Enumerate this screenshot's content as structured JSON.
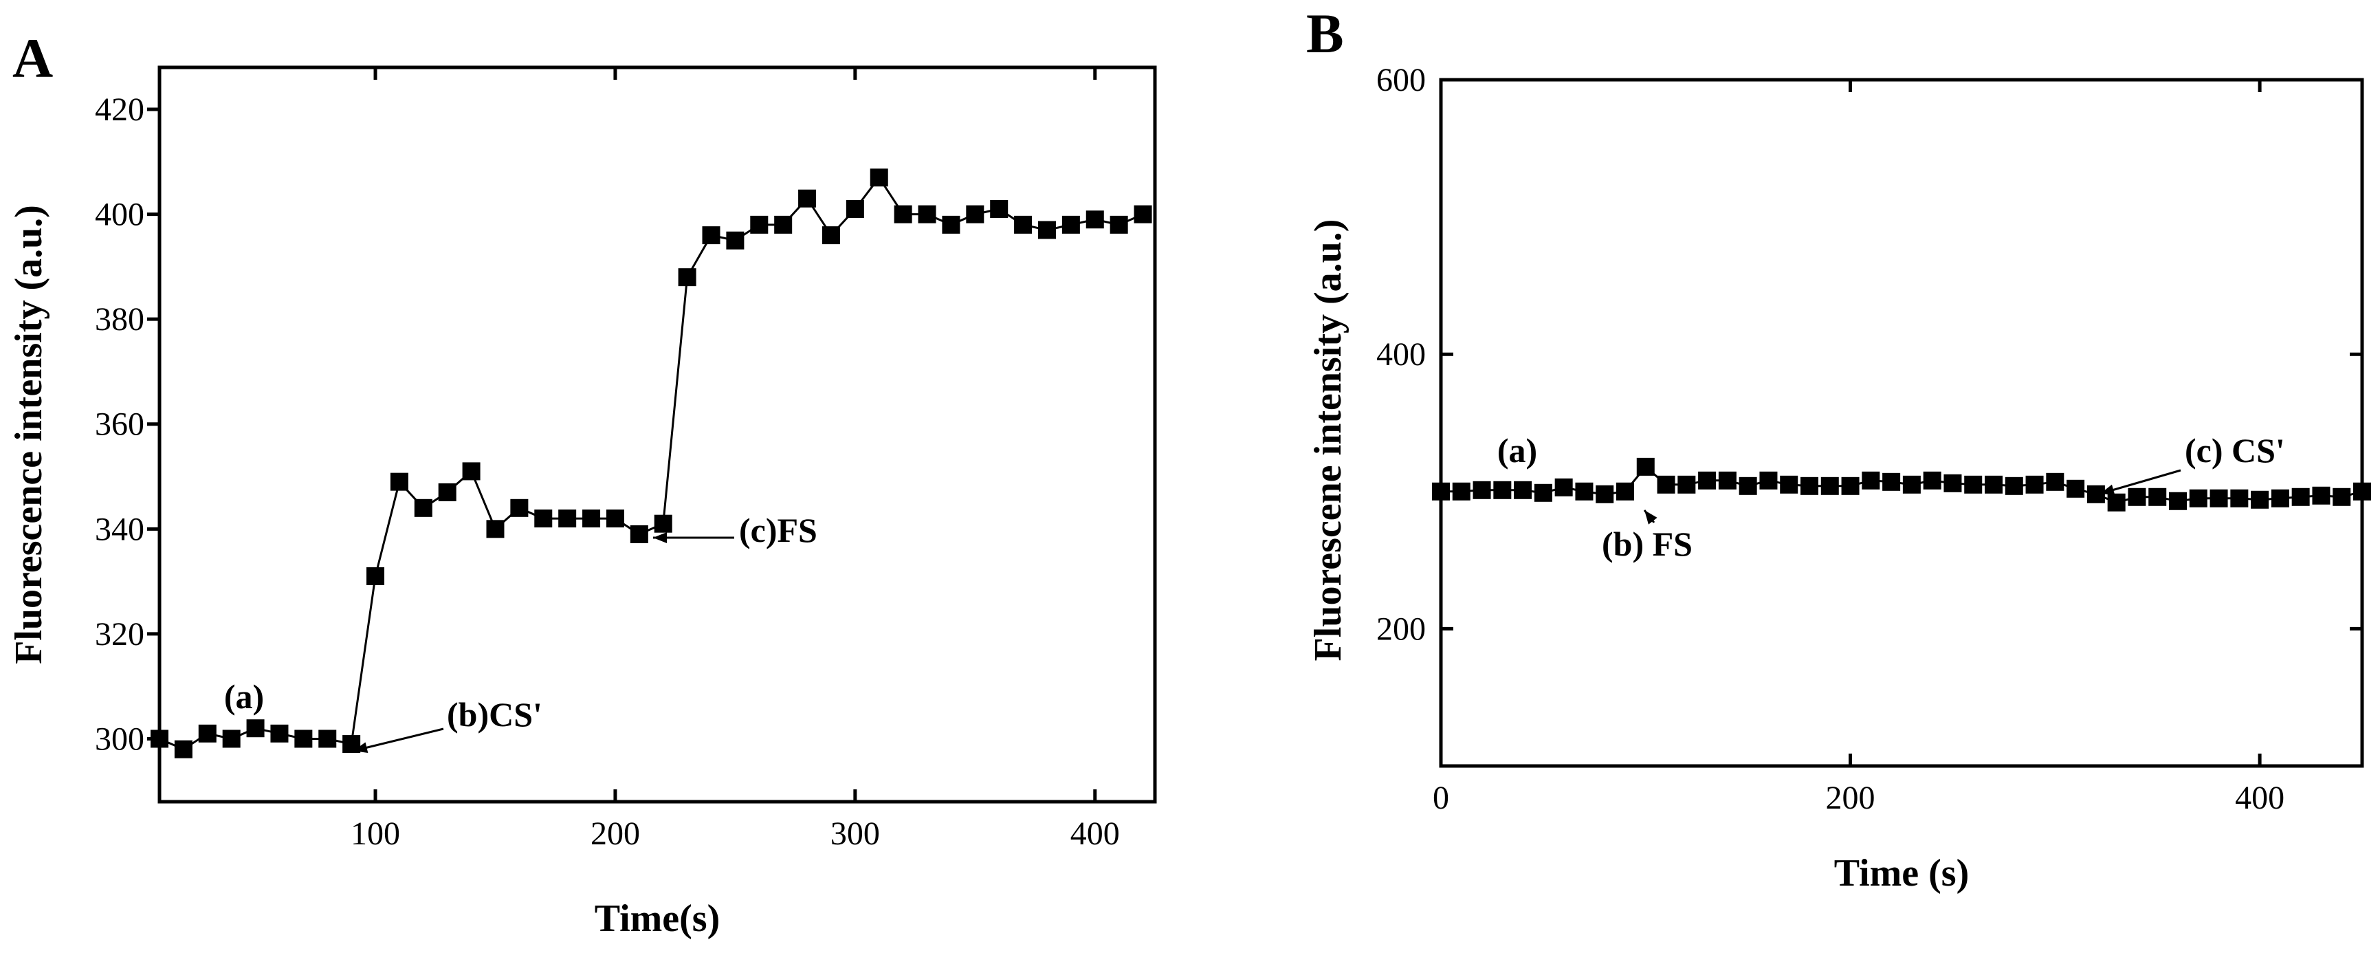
{
  "chart_data": [
    {
      "panel": "A",
      "type": "line",
      "markers": "square",
      "xlabel": "Time(s)",
      "ylabel": "Fluorescence intensity (a.u.)",
      "xlim": [
        10,
        425
      ],
      "ylim": [
        288,
        428
      ],
      "xticks": [
        100,
        200,
        300,
        400
      ],
      "yticks": [
        300,
        320,
        340,
        360,
        380,
        400,
        420
      ],
      "grid": false,
      "legend": "none",
      "color": "#000000",
      "x": [
        10,
        20,
        30,
        40,
        50,
        60,
        70,
        80,
        90,
        100,
        110,
        120,
        130,
        140,
        150,
        160,
        170,
        180,
        190,
        200,
        210,
        220,
        230,
        240,
        250,
        260,
        270,
        280,
        290,
        300,
        310,
        320,
        330,
        340,
        350,
        360,
        370,
        380,
        390,
        400,
        410,
        420
      ],
      "y": [
        300,
        298,
        301,
        300,
        302,
        301,
        300,
        300,
        299,
        331,
        349,
        344,
        347,
        351,
        340,
        344,
        342,
        342,
        342,
        342,
        339,
        341,
        388,
        396,
        395,
        398,
        398,
        403,
        396,
        401,
        407,
        400,
        400,
        398,
        400,
        401,
        398,
        397,
        398,
        399,
        398,
        400
      ],
      "annotations": [
        {
          "text": "(a)",
          "x": 50,
          "y": 300,
          "arrow": false
        },
        {
          "text": "(b)CS'",
          "x": 90,
          "y": 299,
          "arrow": true
        },
        {
          "text": "(c)FS",
          "x": 220,
          "y": 341,
          "arrow": true
        }
      ]
    },
    {
      "panel": "B",
      "type": "line",
      "markers": "square",
      "xlabel": "Time (s)",
      "ylabel": "Fluorescene intensity (a.u.)",
      "xlim": [
        0,
        450
      ],
      "ylim": [
        100,
        600
      ],
      "xticks": [
        0,
        200,
        400
      ],
      "yticks": [
        200,
        400,
        600
      ],
      "grid": false,
      "legend": "none",
      "color": "#000000",
      "x": [
        0,
        10,
        20,
        30,
        40,
        50,
        60,
        70,
        80,
        90,
        100,
        110,
        120,
        130,
        140,
        150,
        160,
        170,
        180,
        190,
        200,
        210,
        220,
        230,
        240,
        250,
        260,
        270,
        280,
        290,
        300,
        310,
        320,
        330,
        340,
        350,
        360,
        370,
        380,
        390,
        400,
        410,
        420,
        430,
        440,
        450
      ],
      "y": [
        300,
        300,
        301,
        301,
        301,
        299,
        303,
        300,
        298,
        300,
        318,
        305,
        305,
        308,
        308,
        304,
        308,
        305,
        304,
        304,
        304,
        308,
        307,
        305,
        308,
        306,
        305,
        305,
        304,
        305,
        307,
        302,
        298,
        292,
        296,
        296,
        293,
        295,
        295,
        295,
        294,
        295,
        296,
        297,
        296,
        300
      ],
      "annotations": [
        {
          "text": "(a)",
          "x": 35,
          "y": 301,
          "arrow": false
        },
        {
          "text": "(b) FS",
          "x": 95,
          "y": 298,
          "arrow": true
        },
        {
          "text": "(c) CS'",
          "x": 320,
          "y": 298,
          "arrow": true
        }
      ]
    }
  ]
}
